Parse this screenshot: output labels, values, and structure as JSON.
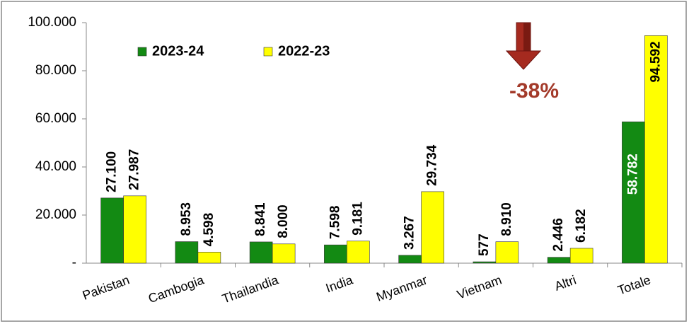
{
  "chart_data": {
    "type": "bar",
    "categories": [
      "Pakistan",
      "Cambogia",
      "Thailandia",
      "India",
      "Myanmar",
      "Vietnam",
      "Altri",
      "Totale"
    ],
    "series": [
      {
        "name": "2023-24",
        "color": "#138a13",
        "values": [
          27100,
          8953,
          8841,
          7598,
          3267,
          577,
          2446,
          58782
        ],
        "value_labels": [
          "27.100",
          "8.953",
          "8.841",
          "7.598",
          "3.267",
          "577",
          "2.446",
          "58.782"
        ]
      },
      {
        "name": "2022-23",
        "color": "#ffff00",
        "values": [
          27987,
          4598,
          8000,
          9181,
          29734,
          8910,
          6182,
          94592
        ],
        "value_labels": [
          "27.987",
          "4.598",
          "8.000",
          "9.181",
          "29.734",
          "8.910",
          "6.182",
          "94.592"
        ]
      }
    ],
    "ylim": [
      0,
      100000
    ],
    "yticks": [
      {
        "value": 0,
        "label": "-"
      },
      {
        "value": 20000,
        "label": "20.000"
      },
      {
        "value": 40000,
        "label": "40.000"
      },
      {
        "value": 60000,
        "label": "60.000"
      },
      {
        "value": 80000,
        "label": "80.000"
      },
      {
        "value": 100000,
        "label": "100.000"
      }
    ],
    "annotation": "-38%",
    "legend": "top-left"
  }
}
